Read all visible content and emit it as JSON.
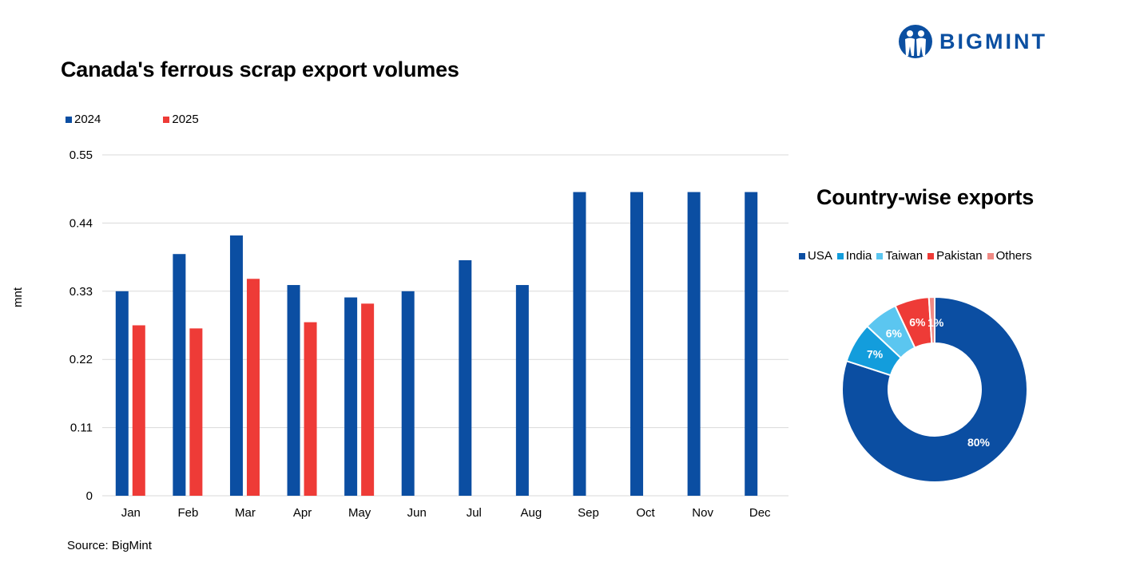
{
  "header": {
    "title": "Canada's ferrous scrap export volumes",
    "logo_text": "BIGMINT",
    "source": "Source: BigMint"
  },
  "colors": {
    "y2024": "#0b4ea2",
    "y2025": "#ee3b37",
    "usa": "#0b4ea2",
    "india": "#139ddc",
    "taiwan": "#5bc6f0",
    "pakistan": "#ee3b37",
    "others": "#f08a84",
    "grid": "#d9d9d9",
    "logo": "#0b4fa1"
  },
  "chart_data": [
    {
      "type": "bar",
      "title": "Canada's ferrous scrap export volumes",
      "xlabel": "",
      "ylabel": "mnt",
      "ylim": [
        0,
        0.55
      ],
      "yticks": [
        "0",
        "0.11",
        "0.22",
        "0.33",
        "0.44",
        "0.55"
      ],
      "grid": true,
      "legend_position": "top-left",
      "categories": [
        "Jan",
        "Feb",
        "Mar",
        "Apr",
        "May",
        "Jun",
        "Jul",
        "Aug",
        "Sep",
        "Oct",
        "Nov",
        "Dec"
      ],
      "series": [
        {
          "name": "2024",
          "values": [
            0.33,
            0.39,
            0.42,
            0.34,
            0.32,
            0.33,
            0.38,
            0.34,
            0.49,
            0.49,
            0.49,
            0.49
          ]
        },
        {
          "name": "2025",
          "values": [
            0.275,
            0.27,
            0.35,
            0.28,
            0.31,
            null,
            null,
            null,
            null,
            null,
            null,
            null
          ]
        }
      ]
    },
    {
      "type": "pie",
      "style": "donut",
      "title": "Country-wise exports",
      "legend_position": "top",
      "slices": [
        {
          "name": "USA",
          "value": 80,
          "label": "80%"
        },
        {
          "name": "India",
          "value": 7,
          "label": "7%"
        },
        {
          "name": "Taiwan",
          "value": 6,
          "label": "6%"
        },
        {
          "name": "Pakistan",
          "value": 6,
          "label": "6%"
        },
        {
          "name": "Others",
          "value": 1,
          "label": "1%"
        }
      ]
    }
  ]
}
